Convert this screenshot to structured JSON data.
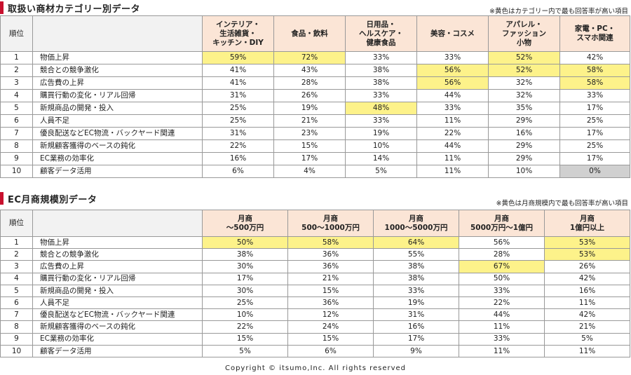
{
  "category": {
    "title": "取扱い商材カテゴリー別データ",
    "note": "※黄色はカテゴリー内で最も回答率が高い項目",
    "rank_header": "順位",
    "columns": [
      [
        "インテリア・",
        "生活雑貨・",
        "キッチン・DIY"
      ],
      [
        "食品・飲料"
      ],
      [
        "日用品・",
        "ヘルスケア・",
        "健康食品"
      ],
      [
        "美容・コスメ"
      ],
      [
        "アパレル・",
        "ファッション",
        "小物"
      ],
      [
        "家電・PC・",
        "スマホ関連"
      ]
    ],
    "rows": [
      {
        "rank": "1",
        "item": "物価上昇",
        "values": [
          "59%",
          "72%",
          "33%",
          "33%",
          "52%",
          "42%"
        ]
      },
      {
        "rank": "2",
        "item": "競合との競争激化",
        "values": [
          "41%",
          "43%",
          "38%",
          "56%",
          "52%",
          "58%"
        ]
      },
      {
        "rank": "3",
        "item": "広告費の上昇",
        "values": [
          "41%",
          "28%",
          "38%",
          "56%",
          "32%",
          "58%"
        ]
      },
      {
        "rank": "4",
        "item": "購買行動の変化・リアル回帰",
        "values": [
          "31%",
          "26%",
          "33%",
          "44%",
          "32%",
          "33%"
        ]
      },
      {
        "rank": "5",
        "item": "新規商品の開発・投入",
        "values": [
          "25%",
          "19%",
          "48%",
          "33%",
          "35%",
          "17%"
        ]
      },
      {
        "rank": "6",
        "item": "人員不足",
        "values": [
          "25%",
          "21%",
          "33%",
          "11%",
          "29%",
          "25%"
        ]
      },
      {
        "rank": "7",
        "item": "優良配送などEC物流・バックヤード関連",
        "values": [
          "31%",
          "23%",
          "19%",
          "22%",
          "16%",
          "17%"
        ]
      },
      {
        "rank": "8",
        "item": "新規顧客獲得のベースの鈍化",
        "values": [
          "22%",
          "15%",
          "10%",
          "44%",
          "29%",
          "25%"
        ]
      },
      {
        "rank": "9",
        "item": "EC業務の効率化",
        "values": [
          "16%",
          "17%",
          "14%",
          "11%",
          "29%",
          "17%"
        ]
      },
      {
        "rank": "10",
        "item": "顧客データ活用",
        "values": [
          "6%",
          "4%",
          "5%",
          "11%",
          "10%",
          "0%"
        ]
      }
    ]
  },
  "monthly": {
    "title": "EC月商規模別データ",
    "note": "※黄色は月商規模内で最も回答率が高い項目",
    "rank_header": "順位",
    "columns": [
      [
        "月商",
        "～500万円"
      ],
      [
        "月商",
        "500～1000万円"
      ],
      [
        "月商",
        "1000～5000万円"
      ],
      [
        "月商",
        "5000万円～1億円"
      ],
      [
        "月商",
        "1億円以上"
      ]
    ],
    "rows": [
      {
        "rank": "1",
        "item": "物価上昇",
        "values": [
          "50%",
          "58%",
          "64%",
          "56%",
          "53%"
        ]
      },
      {
        "rank": "2",
        "item": "競合との競争激化",
        "values": [
          "38%",
          "36%",
          "55%",
          "28%",
          "53%"
        ]
      },
      {
        "rank": "3",
        "item": "広告費の上昇",
        "values": [
          "30%",
          "36%",
          "38%",
          "67%",
          "26%"
        ]
      },
      {
        "rank": "4",
        "item": "購買行動の変化・リアル回帰",
        "values": [
          "17%",
          "21%",
          "38%",
          "50%",
          "42%"
        ]
      },
      {
        "rank": "5",
        "item": "新規商品の開発・投入",
        "values": [
          "30%",
          "15%",
          "33%",
          "33%",
          "16%"
        ]
      },
      {
        "rank": "6",
        "item": "人員不足",
        "values": [
          "25%",
          "36%",
          "19%",
          "22%",
          "11%"
        ]
      },
      {
        "rank": "7",
        "item": "優良配送などEC物流・バックヤード関連",
        "values": [
          "10%",
          "12%",
          "31%",
          "44%",
          "42%"
        ]
      },
      {
        "rank": "8",
        "item": "新規顧客獲得のベースの鈍化",
        "values": [
          "22%",
          "24%",
          "16%",
          "11%",
          "21%"
        ]
      },
      {
        "rank": "9",
        "item": "EC業務の効率化",
        "values": [
          "15%",
          "15%",
          "17%",
          "33%",
          "5%"
        ]
      },
      {
        "rank": "10",
        "item": "顧客データ活用",
        "values": [
          "5%",
          "6%",
          "9%",
          "11%",
          "11%"
        ]
      }
    ]
  },
  "highlight_colors": {
    "top": "#fdf28a",
    "zero": "#d0d0d0",
    "header": "#fbe5d6",
    "accent": "#c8102e"
  },
  "copyright": "Copyright © itsumo,Inc. All rights reserved"
}
